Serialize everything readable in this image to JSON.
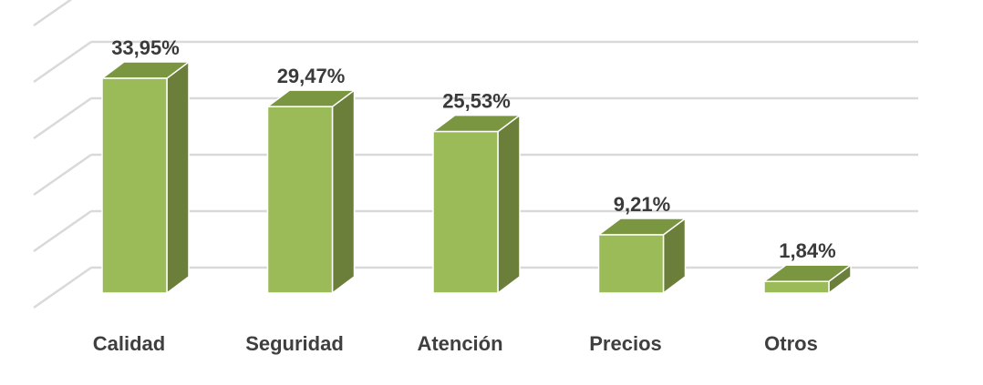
{
  "chart_data": {
    "type": "bar",
    "style": "3d-column",
    "categories": [
      "Calidad",
      "Seguridad",
      "Atención",
      "Precios",
      "Otros"
    ],
    "values": [
      33.95,
      29.47,
      25.53,
      9.21,
      1.84
    ],
    "data_labels": [
      "33,95%",
      "29,47%",
      "25,53%",
      "9,21%",
      "1,84%"
    ],
    "ylim": [
      0,
      40
    ],
    "grid": true,
    "legend": "none",
    "colors": {
      "bar_front": "#9bbb59",
      "bar_side": "#6b7f3b",
      "bar_top": "#7b9640",
      "bar_edge": "#ffffff",
      "gridline": "#d9d9d9",
      "label_text": "#3a3a3a"
    }
  }
}
